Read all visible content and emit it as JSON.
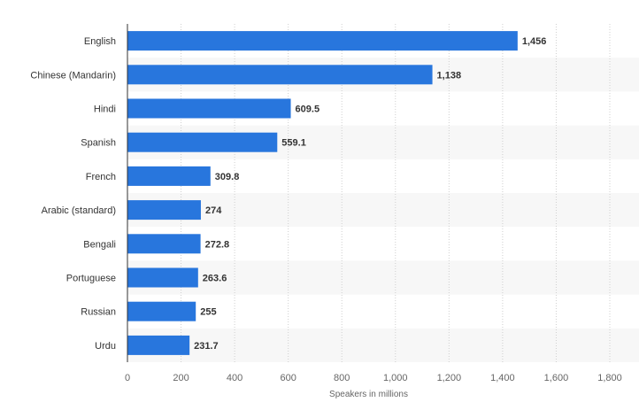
{
  "chart_data": {
    "type": "bar",
    "orientation": "horizontal",
    "categories": [
      "English",
      "Chinese (Mandarin)",
      "Hindi",
      "Spanish",
      "French",
      "Arabic (standard)",
      "Bengali",
      "Portuguese",
      "Russian",
      "Urdu"
    ],
    "values": [
      1456,
      1138,
      609.5,
      559.1,
      309.8,
      274,
      272.8,
      263.6,
      255,
      231.7
    ],
    "value_labels": [
      "1,456",
      "1,138",
      "609.5",
      "559.1",
      "309.8",
      "274",
      "272.8",
      "263.6",
      "255",
      "231.7"
    ],
    "title": "",
    "xlabel": "Speakers in millions",
    "ylabel": "",
    "xlim": [
      0,
      1800
    ],
    "x_ticks": [
      0,
      200,
      400,
      600,
      800,
      1000,
      1200,
      1400,
      1600,
      1800
    ],
    "x_tick_labels": [
      "0",
      "200",
      "400",
      "600",
      "800",
      "1,000",
      "1,200",
      "1,400",
      "1,600",
      "1,800"
    ],
    "grid": "vertical dotted",
    "legend": "none",
    "bar_color": "#2876dd",
    "band_color": "#f7f7f7"
  }
}
